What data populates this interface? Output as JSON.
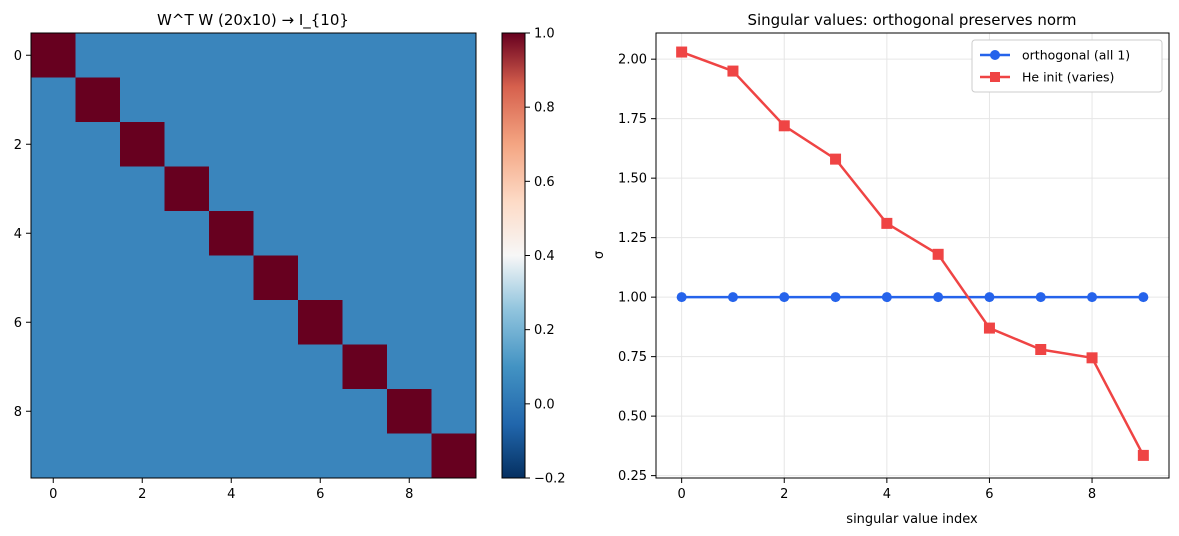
{
  "chart_data": [
    {
      "type": "heatmap",
      "title": "W^T W (20x10) → I_{10}",
      "xlabel": "",
      "ylabel": "",
      "rows": 10,
      "cols": 10,
      "matrix": [
        [
          1,
          0,
          0,
          0,
          0,
          0,
          0,
          0,
          0,
          0
        ],
        [
          0,
          1,
          0,
          0,
          0,
          0,
          0,
          0,
          0,
          0
        ],
        [
          0,
          0,
          1,
          0,
          0,
          0,
          0,
          0,
          0,
          0
        ],
        [
          0,
          0,
          0,
          1,
          0,
          0,
          0,
          0,
          0,
          0
        ],
        [
          0,
          0,
          0,
          0,
          1,
          0,
          0,
          0,
          0,
          0
        ],
        [
          0,
          0,
          0,
          0,
          0,
          1,
          0,
          0,
          0,
          0
        ],
        [
          0,
          0,
          0,
          0,
          0,
          0,
          1,
          0,
          0,
          0
        ],
        [
          0,
          0,
          0,
          0,
          0,
          0,
          0,
          1,
          0,
          0
        ],
        [
          0,
          0,
          0,
          0,
          0,
          0,
          0,
          0,
          1,
          0
        ],
        [
          0,
          0,
          0,
          0,
          0,
          0,
          0,
          0,
          0,
          1
        ]
      ],
      "xticks": [
        "0",
        "2",
        "4",
        "6",
        "8"
      ],
      "yticks": [
        "0",
        "2",
        "4",
        "6",
        "8"
      ],
      "colormap": "RdBu_r",
      "colorbar": {
        "vmin": -0.2,
        "vmax": 1.0,
        "ticks": [
          "1.0",
          "0.8",
          "0.6",
          "0.4",
          "0.2",
          "0.0",
          "−0.2"
        ]
      },
      "colors": {
        "one": "#67001f",
        "zero": "#3a85bc"
      }
    },
    {
      "type": "line",
      "title": "Singular values: orthogonal preserves norm",
      "xlabel": "singular value index",
      "ylabel": "σ",
      "x": [
        0,
        1,
        2,
        3,
        4,
        5,
        6,
        7,
        8,
        9
      ],
      "xlim": [
        -0.5,
        9.5
      ],
      "ylim": [
        0.24,
        2.11
      ],
      "xticks": [
        "0",
        "2",
        "4",
        "6",
        "8"
      ],
      "yticks": [
        "2.00",
        "1.75",
        "1.50",
        "1.25",
        "1.00",
        "0.75",
        "0.50",
        "0.25"
      ],
      "grid": true,
      "legend_position": "top-right",
      "series": [
        {
          "name": "orthogonal (all 1)",
          "values": [
            1.0,
            1.0,
            1.0,
            1.0,
            1.0,
            1.0,
            1.0,
            1.0,
            1.0,
            1.0
          ],
          "color": "#2563eb",
          "marker": "circle"
        },
        {
          "name": "He init (varies)",
          "values": [
            2.03,
            1.95,
            1.72,
            1.58,
            1.31,
            1.18,
            0.87,
            0.78,
            0.745,
            0.335
          ],
          "color": "#ef4444",
          "marker": "square"
        }
      ]
    }
  ]
}
